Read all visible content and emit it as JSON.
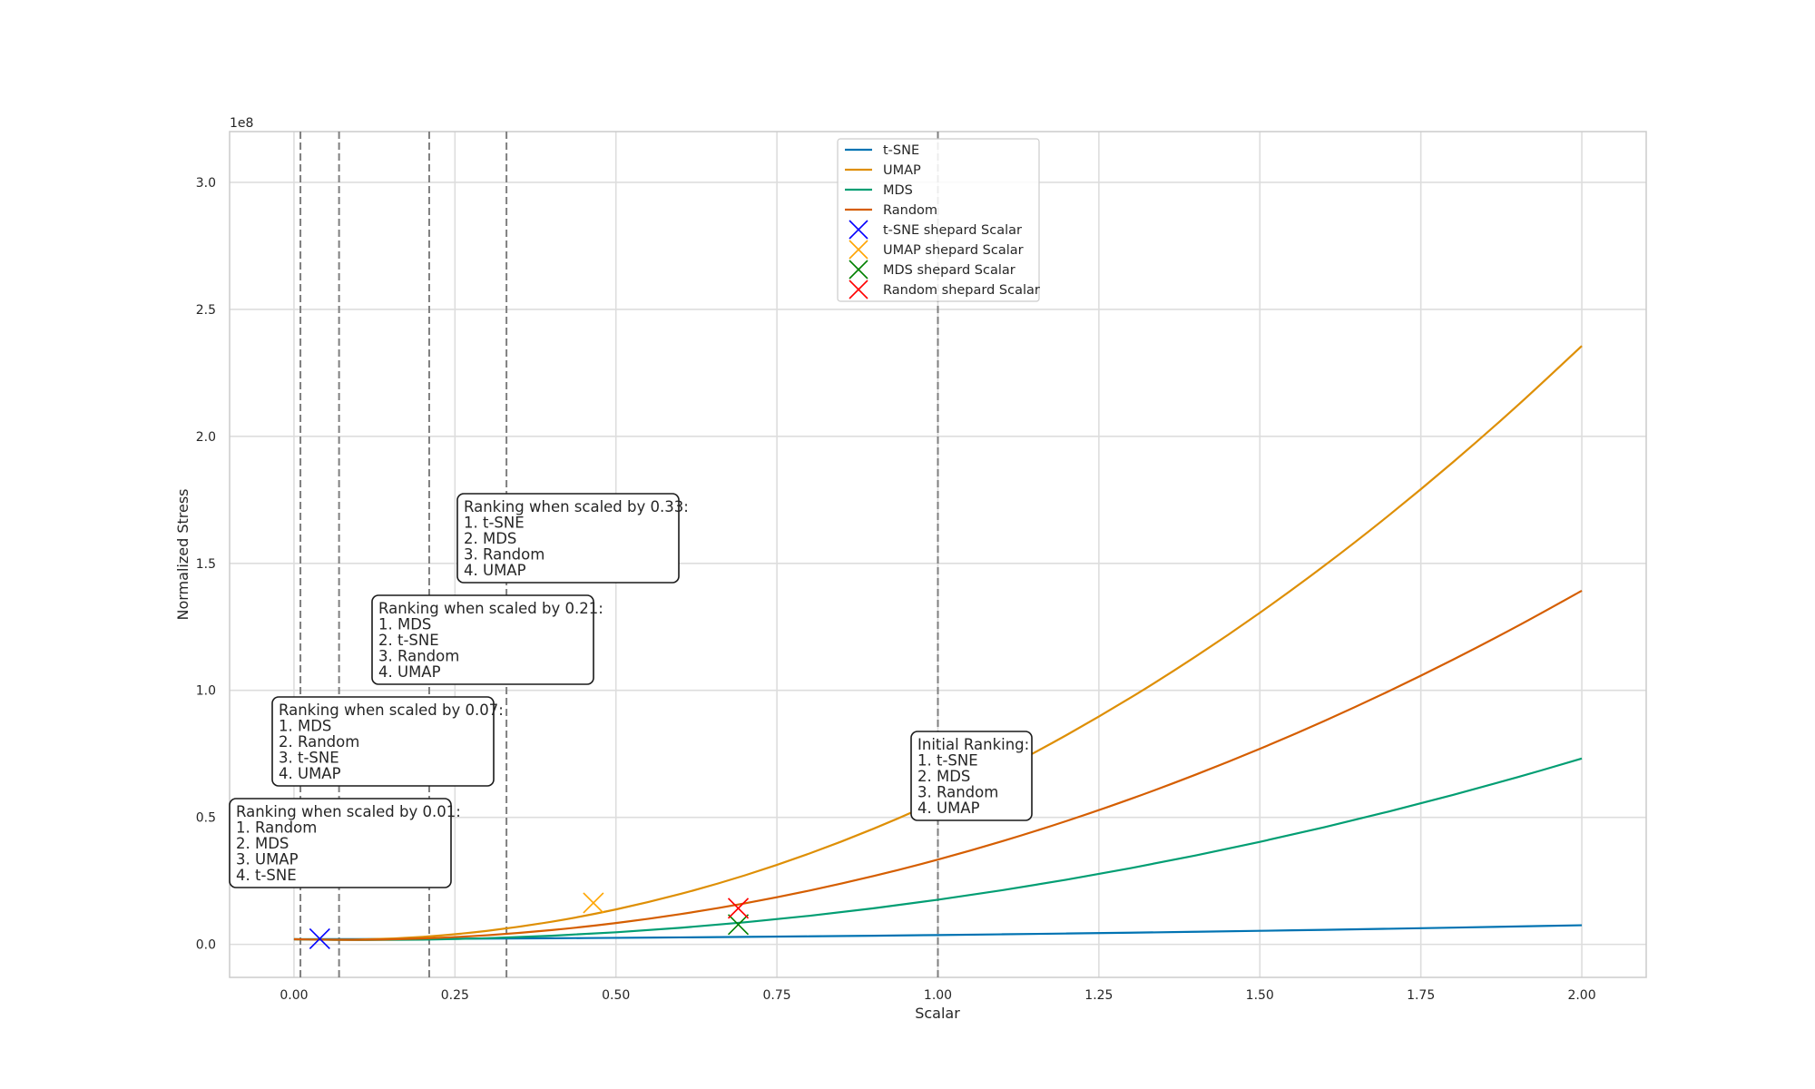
{
  "chart_data": {
    "type": "line",
    "xlabel": "Scalar",
    "ylabel": "Normalized Stress",
    "y_offset_label": "1e8",
    "xlim": [
      -0.1,
      2.1
    ],
    "ylim": [
      -0.13,
      3.2
    ],
    "x_ticks": [
      {
        "value": 0.0,
        "label": "0.00"
      },
      {
        "value": 0.25,
        "label": "0.25"
      },
      {
        "value": 0.5,
        "label": "0.50"
      },
      {
        "value": 0.75,
        "label": "0.75"
      },
      {
        "value": 1.0,
        "label": "1.00"
      },
      {
        "value": 1.25,
        "label": "1.25"
      },
      {
        "value": 1.5,
        "label": "1.50"
      },
      {
        "value": 1.75,
        "label": "1.75"
      },
      {
        "value": 2.0,
        "label": "2.00"
      }
    ],
    "y_ticks": [
      {
        "value": 0.0,
        "label": "0.0"
      },
      {
        "value": 0.5,
        "label": "0.5"
      },
      {
        "value": 1.0,
        "label": "1.0"
      },
      {
        "value": 1.5,
        "label": "1.5"
      },
      {
        "value": 2.0,
        "label": "2.0"
      },
      {
        "value": 2.5,
        "label": "2.5"
      },
      {
        "value": 3.0,
        "label": "3.0"
      }
    ],
    "grid": true,
    "legend_position": "top-center",
    "x": [
      0.0,
      0.1,
      0.2,
      0.3,
      0.4,
      0.5,
      0.6,
      0.7,
      0.8,
      0.9,
      1.0,
      1.1,
      1.2,
      1.3,
      1.4,
      1.5,
      1.6,
      1.7,
      1.8,
      1.9,
      2.0
    ],
    "series": [
      {
        "name": "t-SNE",
        "color": "#0173b2",
        "values": [
          0.02,
          0.0207,
          0.0216,
          0.0227,
          0.0241,
          0.0256,
          0.0274,
          0.0294,
          0.0316,
          0.034,
          0.0367,
          0.0396,
          0.0427,
          0.046,
          0.0495,
          0.0533,
          0.0572,
          0.0614,
          0.0658,
          0.0705,
          0.0753
        ]
      },
      {
        "name": "UMAP",
        "color": "#de8f05",
        "values": [
          0.02,
          0.0186,
          0.0297,
          0.0532,
          0.0891,
          0.1375,
          0.1983,
          0.2715,
          0.3572,
          0.4553,
          0.5659,
          0.6889,
          0.8244,
          0.9723,
          1.1327,
          1.3055,
          1.4907,
          1.6884,
          1.8985,
          2.1211,
          2.3561
        ]
      },
      {
        "name": "MDS",
        "color": "#029e73",
        "values": [
          0.02,
          0.0172,
          0.0188,
          0.0244,
          0.034,
          0.0476,
          0.0652,
          0.0868,
          0.1124,
          0.142,
          0.1756,
          0.2132,
          0.2548,
          0.3004,
          0.35,
          0.4036,
          0.4612,
          0.5228,
          0.5884,
          0.658,
          0.7316
        ]
      },
      {
        "name": "Random",
        "color": "#d55e00",
        "values": [
          0.02,
          0.0179,
          0.0233,
          0.036,
          0.0562,
          0.0839,
          0.119,
          0.1615,
          0.2115,
          0.2689,
          0.3338,
          0.4061,
          0.4859,
          0.5731,
          0.6678,
          0.7699,
          0.8795,
          0.9965,
          1.121,
          1.2529,
          1.3923
        ]
      }
    ],
    "markers": [
      {
        "name": "t-SNE shepard Scalar",
        "color": "#0000ff",
        "x": 0.04,
        "y": 0.022
      },
      {
        "name": "UMAP shepard Scalar",
        "color": "#ffa500",
        "x": 0.465,
        "y": 0.163
      },
      {
        "name": "MDS shepard Scalar",
        "color": "#008000",
        "x": 0.69,
        "y": 0.078
      },
      {
        "name": "Random shepard Scalar",
        "color": "#ff0000",
        "x": 0.69,
        "y": 0.142
      }
    ],
    "vlines": [
      0.01,
      0.07,
      0.21,
      0.33,
      1.0
    ],
    "annotations": [
      {
        "title": "Ranking when scaled by 0.01:",
        "items": [
          "1. Random",
          "2. MDS",
          "3. UMAP",
          "4. t-SNE"
        ]
      },
      {
        "title": "Ranking when scaled by 0.07:",
        "items": [
          "1. MDS",
          "2. Random",
          "3. t-SNE",
          "4. UMAP"
        ]
      },
      {
        "title": "Ranking when scaled by 0.21:",
        "items": [
          "1. MDS",
          "2. t-SNE",
          "3. Random",
          "4. UMAP"
        ]
      },
      {
        "title": "Ranking when scaled by 0.33:",
        "items": [
          "1. t-SNE",
          "2. MDS",
          "3. Random",
          "4. UMAP"
        ]
      },
      {
        "title": "Initial Ranking:",
        "items": [
          "1. t-SNE",
          "2. MDS",
          "3. Random",
          "4. UMAP"
        ]
      }
    ]
  }
}
